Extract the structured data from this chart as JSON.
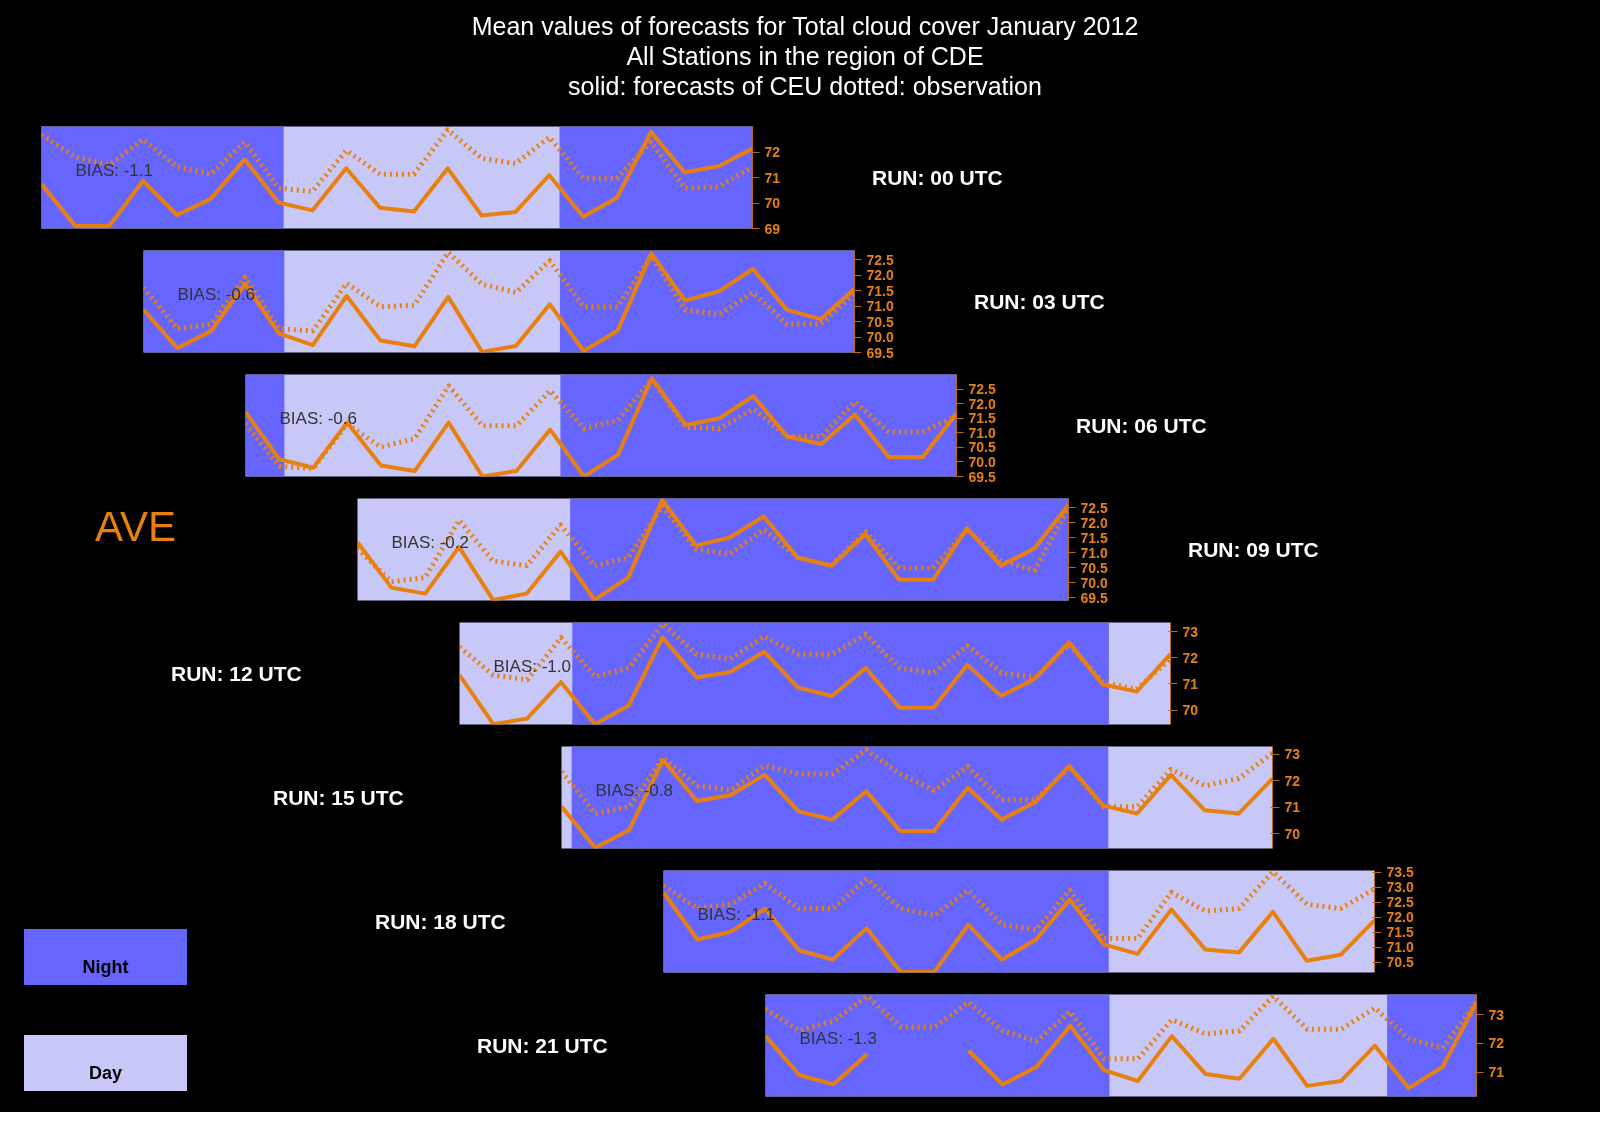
{
  "chart_data": [
    {
      "type": "line",
      "title": "Mean values of forecasts for Total cloud cover January 2012",
      "subtitle": "All Stations in the region of CDE\nsolid: forecasts of CEU dotted: observation",
      "annotations": [
        "RUN: 00 UTC",
        "BIAS: -1.1"
      ],
      "tick_labels": "y",
      "categories": [
        null,
        null,
        null,
        null,
        null,
        null,
        null,
        null,
        null,
        null,
        null,
        null,
        null,
        null,
        null,
        null,
        null,
        null,
        null,
        null,
        null,
        null
      ],
      "ylim": [
        69,
        73
      ],
      "yticks": [
        69,
        70,
        71,
        72
      ],
      "series": [
        {
          "color": "#e8800f",
          "line_style": "solid",
          "values": [
            70.74,
            69.1,
            69.1,
            70.87,
            69.53,
            70.16,
            71.71,
            70.02,
            69.71,
            71.36,
            69.81,
            69.67,
            71.36,
            69.51,
            69.65,
            71.09,
            69.46,
            70.21,
            72.78,
            71.2,
            71.44,
            72.14
          ]
        },
        {
          "color": "#e8800f",
          "line_style": "dotted",
          "values": [
            72.68,
            71.8,
            71.5,
            72.49,
            71.42,
            71.13,
            72.39,
            70.58,
            70.45,
            72.06,
            71.13,
            71.13,
            72.87,
            71.75,
            71.55,
            72.58,
            70.97,
            70.97,
            72.39,
            70.58,
            70.64,
            71.42
          ]
        }
      ]
    },
    {
      "type": "line",
      "annotations": [
        "RUN: 03 UTC",
        "BIAS: -0.6"
      ],
      "tick_labels": "y",
      "categories": [
        null,
        null,
        null,
        null,
        null,
        null,
        null,
        null,
        null,
        null,
        null,
        null,
        null,
        null,
        null,
        null,
        null,
        null,
        null,
        null,
        null,
        null
      ],
      "ylim": [
        69.5,
        72.8
      ],
      "yticks": [
        69.5,
        {
          "value": 70,
          "label": "70.0"
        },
        70.5,
        {
          "value": 71,
          "label": "71.0"
        },
        71.5,
        {
          "value": 72,
          "label": "72.0"
        },
        72.5
      ],
      "series": [
        {
          "color": "#e8800f",
          "line_style": "solid",
          "values": [
            70.88,
            69.64,
            70.2,
            71.71,
            70.12,
            69.74,
            71.33,
            69.89,
            69.7,
            71.3,
            69.52,
            69.71,
            71.06,
            69.55,
            70.2,
            72.7,
            71.18,
            71.48,
            72.2,
            70.88,
            70.58,
            71.56
          ]
        },
        {
          "color": "#e8800f",
          "line_style": "dotted",
          "values": [
            71.6,
            70.27,
            70.42,
            71.94,
            70.27,
            70.2,
            71.74,
            70.98,
            71.03,
            72.74,
            71.71,
            71.44,
            72.47,
            70.98,
            70.98,
            72.62,
            70.88,
            70.73,
            71.44,
            70.42,
            70.42,
            71.41
          ]
        }
      ]
    },
    {
      "type": "line",
      "annotations": [
        "RUN: 06 UTC",
        "BIAS: -0.6"
      ],
      "tick_labels": "y",
      "categories": [
        null,
        null,
        null,
        null,
        null,
        null,
        null,
        null,
        null,
        null,
        null,
        null,
        null,
        null,
        null,
        null,
        null,
        null,
        null,
        null,
        null,
        null
      ],
      "ylim": [
        69.5,
        73.0
      ],
      "yticks": [
        69.5,
        {
          "value": 70,
          "label": "70.0"
        },
        70.5,
        {
          "value": 71,
          "label": "71.0"
        },
        71.5,
        {
          "value": 72,
          "label": "72.0"
        },
        72.5
      ],
      "series": [
        {
          "color": "#e8800f",
          "line_style": "solid",
          "values": [
            71.71,
            70.09,
            69.8,
            71.35,
            69.88,
            69.69,
            71.35,
            69.5,
            69.69,
            71.11,
            69.5,
            70.24,
            72.87,
            71.27,
            71.5,
            72.26,
            70.87,
            70.61,
            71.63,
            70.17,
            70.17,
            71.66
          ]
        },
        {
          "color": "#e8800f",
          "line_style": "dotted",
          "values": [
            71.3,
            69.85,
            69.77,
            71.3,
            70.51,
            70.8,
            72.61,
            71.24,
            71.24,
            72.45,
            71.14,
            71.43,
            72.84,
            71.19,
            71.14,
            71.82,
            70.87,
            70.87,
            72.06,
            71.03,
            71.03,
            71.58
          ]
        }
      ]
    },
    {
      "type": "line",
      "annotations": [
        "RUN: 09 UTC",
        "BIAS: -0.2",
        "AVE"
      ],
      "tick_labels": "y",
      "categories": [
        null,
        null,
        null,
        null,
        null,
        null,
        null,
        null,
        null,
        null,
        null,
        null,
        null,
        null,
        null,
        null,
        null,
        null,
        null,
        null,
        null,
        null
      ],
      "ylim": [
        69.4,
        72.8
      ],
      "yticks": [
        69.5,
        {
          "value": 70,
          "label": "70.0"
        },
        70.5,
        {
          "value": 71,
          "label": "71.0"
        },
        71.5,
        {
          "value": 72,
          "label": "72.0"
        },
        72.5
      ],
      "series": [
        {
          "color": "#e8800f",
          "line_style": "solid",
          "values": [
            71.34,
            69.83,
            69.63,
            71.19,
            69.42,
            69.63,
            71.03,
            69.42,
            70.17,
            72.75,
            71.23,
            71.5,
            72.2,
            70.83,
            70.56,
            71.61,
            70.09,
            70.09,
            71.81,
            70.56,
            71.14,
            72.59
          ]
        },
        {
          "color": "#e8800f",
          "line_style": "dotted",
          "values": [
            71.14,
            70.02,
            70.17,
            72.08,
            70.72,
            70.56,
            71.92,
            70.56,
            70.83,
            72.55,
            71.11,
            70.95,
            71.77,
            70.83,
            70.56,
            71.7,
            70.48,
            70.48,
            71.77,
            70.72,
            70.41,
            72.48
          ]
        }
      ]
    },
    {
      "type": "line",
      "annotations": [
        "RUN: 12 UTC",
        "BIAS: -1.0"
      ],
      "tick_labels": "y",
      "categories": [
        null,
        null,
        null,
        null,
        null,
        null,
        null,
        null,
        null,
        null,
        null,
        null,
        null,
        null,
        null,
        null,
        null,
        null,
        null,
        null,
        null,
        null
      ],
      "ylim": [
        69.45,
        73.35
      ],
      "yticks": [
        70,
        71,
        72,
        73
      ],
      "series": [
        {
          "color": "#e8800f",
          "line_style": "solid",
          "values": [
            71.34,
            69.46,
            69.68,
            71.07,
            69.46,
            70.18,
            72.77,
            71.25,
            71.46,
            72.23,
            70.86,
            70.54,
            71.61,
            70.09,
            70.09,
            71.73,
            70.54,
            71.2,
            72.59,
            70.98,
            70.71,
            72.14
          ]
        },
        {
          "color": "#e8800f",
          "line_style": "dotted",
          "values": [
            72.41,
            71.34,
            71.16,
            72.77,
            71.29,
            71.61,
            73.3,
            72.14,
            71.96,
            72.82,
            72.14,
            72.14,
            72.89,
            71.61,
            71.43,
            72.46,
            71.43,
            71.25,
            72.5,
            71.07,
            70.8,
            71.96
          ]
        }
      ]
    },
    {
      "type": "line",
      "annotations": [
        "RUN: 15 UTC",
        "BIAS: -0.8"
      ],
      "tick_labels": "y",
      "categories": [
        null,
        null,
        null,
        null,
        null,
        null,
        null,
        null,
        null,
        null,
        null,
        null,
        null,
        null,
        null,
        null,
        null,
        null,
        null,
        null,
        null,
        null
      ],
      "ylim": [
        69.45,
        73.3
      ],
      "yticks": [
        70,
        71,
        72,
        73
      ],
      "series": [
        {
          "color": "#e8800f",
          "line_style": "solid",
          "values": [
            71.03,
            69.48,
            70.15,
            72.79,
            71.24,
            71.47,
            72.23,
            70.85,
            70.54,
            71.61,
            70.11,
            70.11,
            71.74,
            70.54,
            71.21,
            72.56,
            71.07,
            70.77,
            72.23,
            70.89,
            70.77,
            72.09
          ]
        },
        {
          "color": "#e8800f",
          "line_style": "dotted",
          "values": [
            72.35,
            70.77,
            71.03,
            72.88,
            71.82,
            71.65,
            72.58,
            72.26,
            72.26,
            73.18,
            72.26,
            71.65,
            72.53,
            71.29,
            71.29,
            72.53,
            71.03,
            71.03,
            72.44,
            71.82,
            72.09,
            73.06
          ]
        }
      ]
    },
    {
      "type": "line",
      "annotations": [
        "RUN: 18 UTC",
        "BIAS: -1.1"
      ],
      "tick_labels": "y",
      "categories": [
        null,
        null,
        null,
        null,
        null,
        null,
        null,
        null,
        null,
        null,
        null,
        null,
        null,
        null,
        null,
        null,
        null,
        null,
        null,
        null,
        null,
        null
      ],
      "ylim": [
        70.15,
        73.55
      ],
      "yticks": [
        70.5,
        {
          "value": 71,
          "label": "71.0"
        },
        71.5,
        {
          "value": 72,
          "label": "72.0"
        },
        72.5,
        {
          "value": 73,
          "label": "73.0"
        },
        73.5
      ],
      "series": [
        {
          "color": "#e8800f",
          "line_style": "solid",
          "values": [
            72.82,
            71.25,
            71.51,
            72.28,
            70.89,
            70.58,
            71.63,
            70.17,
            70.17,
            71.74,
            70.58,
            71.25,
            72.58,
            71.09,
            70.77,
            72.25,
            70.92,
            70.82,
            72.17,
            70.54,
            70.74,
            71.89
          ]
        },
        {
          "color": "#e8800f",
          "line_style": "dotted",
          "values": [
            73.05,
            72.28,
            72.43,
            73.12,
            72.28,
            72.28,
            73.28,
            72.28,
            72.05,
            72.89,
            71.74,
            71.58,
            72.89,
            71.28,
            71.28,
            72.82,
            72.2,
            72.28,
            73.51,
            72.43,
            72.28,
            72.94
          ]
        }
      ]
    },
    {
      "type": "line",
      "annotations": [
        "RUN: 21 UTC",
        "BIAS: -1.3",
        "Night",
        "Day"
      ],
      "tick_labels": "y",
      "categories": [
        null,
        null,
        null,
        null,
        null,
        null,
        null,
        null,
        null,
        null,
        null,
        null,
        null,
        null,
        null,
        null,
        null,
        null,
        null,
        null,
        null,
        null
      ],
      "ylim": [
        70.15,
        73.7
      ],
      "yticks": [
        71,
        72,
        73
      ],
      "series": [
        {
          "color": "#e8800f",
          "line_style": "solid",
          "values": [
            72.25,
            70.9,
            70.57,
            71.62,
            null,
            null,
            71.75,
            70.57,
            71.18,
            72.61,
            71.07,
            70.69,
            72.25,
            70.93,
            70.77,
            72.16,
            70.52,
            70.69,
            71.92,
            70.44,
            71.18,
            73.43
          ]
        },
        {
          "color": "#e8800f",
          "line_style": "dotted",
          "values": [
            73.2,
            72.44,
            72.77,
            73.64,
            72.57,
            72.57,
            73.43,
            72.44,
            72.08,
            73.1,
            71.46,
            71.46,
            72.82,
            72.33,
            72.44,
            73.64,
            72.49,
            72.49,
            73.23,
            72.16,
            71.84,
            73.43
          ]
        }
      ]
    }
  ]
}
